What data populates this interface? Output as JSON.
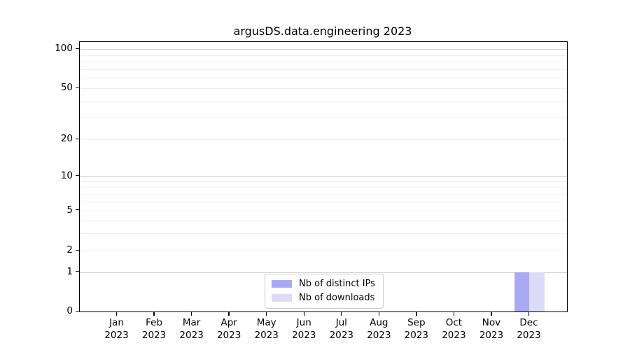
{
  "chart_data": {
    "type": "bar",
    "title": "argusDS.data.engineering 2023",
    "xlabel": "",
    "ylabel": "",
    "yscale": "symlog",
    "ylim": [
      0,
      115
    ],
    "y_ticks": [
      0,
      1,
      2,
      5,
      10,
      20,
      50,
      100
    ],
    "y_tick_labels": [
      "0",
      "1",
      "2",
      "5",
      "10",
      "20",
      "50",
      "100"
    ],
    "grid": "horizontal major+minor",
    "legend_position": "lower center",
    "categories": [
      "Jan",
      "Feb",
      "Mar",
      "Apr",
      "May",
      "Jun",
      "Jul",
      "Aug",
      "Sep",
      "Oct",
      "Nov",
      "Dec"
    ],
    "category_year": "2023",
    "series": [
      {
        "name": "Nb of distinct IPs",
        "color": "#aaaaf2",
        "values": [
          0,
          0,
          0,
          0,
          0,
          0,
          0,
          0,
          0,
          0,
          0,
          1
        ]
      },
      {
        "name": "Nb of downloads",
        "color": "#dcdcf8",
        "values": [
          0,
          0,
          0,
          0,
          0,
          0,
          0,
          0,
          0,
          0,
          0,
          1
        ]
      }
    ],
    "colors": {
      "spine": "#000000",
      "grid_major": "#d2d2d2",
      "grid_minor": "#efefef",
      "legend_border": "#cccccc"
    }
  }
}
